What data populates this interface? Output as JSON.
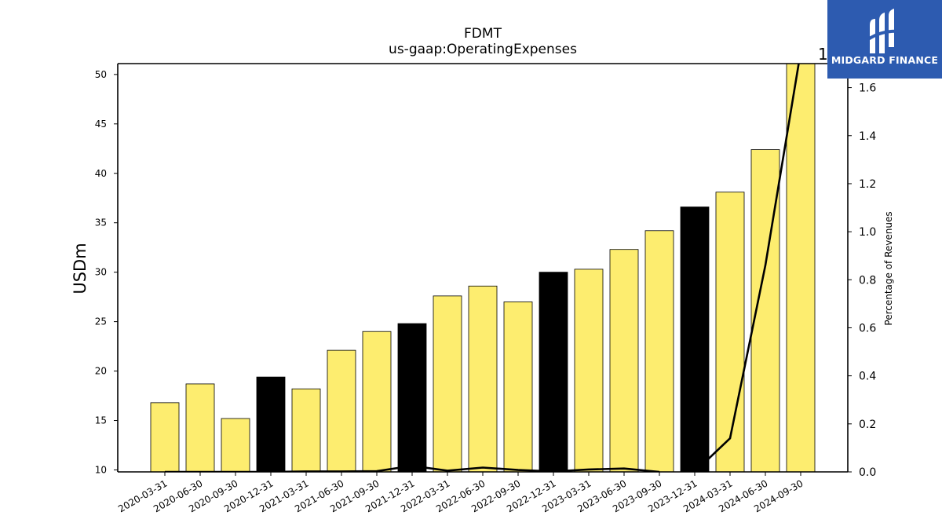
{
  "logo": {
    "text": "MIDGARD FINANCE",
    "icon": "midgard-logo-icon",
    "background": "#2d5bb0"
  },
  "chart_data": {
    "type": "bar",
    "title": "FDMT",
    "subtitle": "us-gaap:OperatingExpenses",
    "ylabel": "USDm",
    "y2label": "Percentage of Revenues",
    "ylim": [
      9.8,
      51.1
    ],
    "y2lim": [
      0,
      1.7
    ],
    "yticks": [
      10,
      15,
      20,
      25,
      30,
      35,
      40,
      45,
      50
    ],
    "y2ticks": [
      "0.0",
      "0.2",
      "0.4",
      "0.6",
      "0.8",
      "1.0",
      "1.2",
      "1.4",
      "1.6"
    ],
    "y2_offset_label": "1",
    "categories": [
      "2020-03-31",
      "2020-06-30",
      "2020-09-30",
      "2020-12-31",
      "2021-03-31",
      "2021-06-30",
      "2021-09-30",
      "2021-12-31",
      "2022-03-31",
      "2022-06-30",
      "2022-09-30",
      "2022-12-31",
      "2023-03-31",
      "2023-06-30",
      "2023-09-30",
      "2023-12-31",
      "2024-03-31",
      "2024-06-30",
      "2024-09-30"
    ],
    "values": [
      16.8,
      18.7,
      15.2,
      19.4,
      18.2,
      22.1,
      24.0,
      24.8,
      27.6,
      28.6,
      27.0,
      30.0,
      30.3,
      32.3,
      34.2,
      36.6,
      38.1,
      42.4,
      51.1
    ],
    "bar_colors": [
      "#fded6f",
      "#fded6f",
      "#fded6f",
      "#000000",
      "#fded6f",
      "#fded6f",
      "#fded6f",
      "#000000",
      "#fded6f",
      "#fded6f",
      "#fded6f",
      "#000000",
      "#fded6f",
      "#fded6f",
      "#fded6f",
      "#000000",
      "#fded6f",
      "#fded6f",
      "#fded6f"
    ],
    "line_series": {
      "name": "Percentage of Revenues",
      "color": "#000000",
      "segments": [
        {
          "x": [
            "2020-03-31",
            "2020-06-30",
            "2020-09-30",
            "2020-12-31",
            "2021-03-31",
            "2021-06-30",
            "2021-09-30",
            "2021-12-31",
            "2022-03-31",
            "2022-06-30",
            "2022-09-30",
            "2022-12-31",
            "2023-03-31",
            "2023-06-30",
            "2023-09-30"
          ],
          "values": [
            0.0,
            0.0,
            0.0,
            0.0,
            0.002,
            0.002,
            0.003,
            0.025,
            0.005,
            0.018,
            0.008,
            0.002,
            0.01,
            0.014,
            0.0
          ]
        },
        {
          "x": [
            "2023-12-31",
            "2024-03-31",
            "2024-06-30",
            "2024-09-30"
          ],
          "values": [
            0.0,
            0.14,
            0.86,
            1.75
          ]
        }
      ]
    },
    "grid": false
  }
}
